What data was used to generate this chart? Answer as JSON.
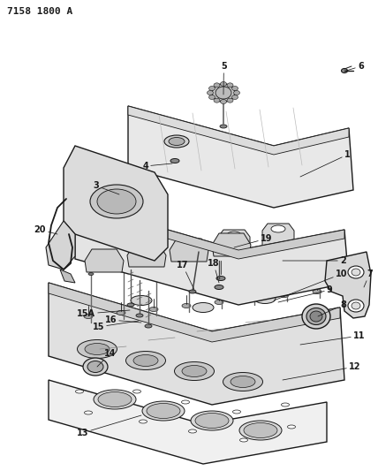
{
  "title": "7158 1800 A",
  "bg_color": "#ffffff",
  "line_color": "#1a1a1a",
  "fig_width": 4.28,
  "fig_height": 5.33,
  "dpi": 100,
  "label_fontsize": 7,
  "title_fontsize": 8,
  "gray_light": "#e8e8e8",
  "gray_mid": "#cccccc",
  "gray_dark": "#aaaaaa",
  "gray_fill": "#d4d4d4",
  "white": "#ffffff"
}
